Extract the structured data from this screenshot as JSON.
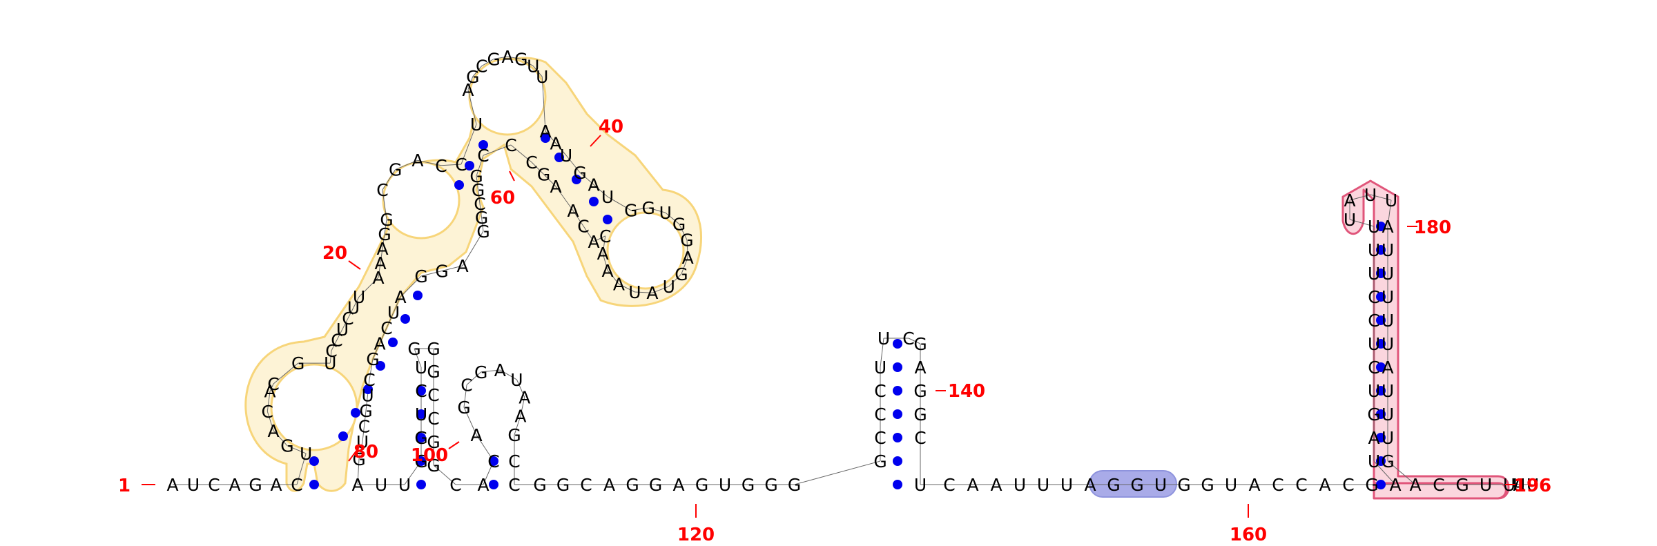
{
  "sequence": "AUCAGACUGUCCACGUAAAUGGCCCAGCCUAGCGAGUUAAAUGGGGAUUAAUCCAAGGCCCGAGGAUCCCGUCGAGCUGACGCCAUCUGCCGGCAGGGCCGAGCCAGAGGAGUGGGGCAAUUUAGGUGGUACCACGAUAGUCUCCUGUUUGGUAUUAUUUUAUACAAGGCAAUUUUUUA",
  "structure_regions": [
    {
      "label": "hairpin-region-1-86",
      "color": "#f7d57a",
      "fill": "#fdf3d6"
    },
    {
      "label": "highlight-UGGU",
      "color": "#8e93dd",
      "fill": "#a9abe8"
    },
    {
      "label": "terminator-hairpin",
      "color": "#e0557a",
      "fill": "#fbd6de"
    }
  ],
  "position_labels": [
    {
      "text": "1"
    },
    {
      "text": "20"
    },
    {
      "text": "40"
    },
    {
      "text": "60"
    },
    {
      "text": "80"
    },
    {
      "text": "100"
    },
    {
      "text": "120"
    },
    {
      "text": "140"
    },
    {
      "text": "160"
    },
    {
      "text": "180"
    },
    {
      "text": "196"
    }
  ],
  "nucleotides": [
    {
      "n": "A"
    },
    {
      "n": "U"
    },
    {
      "n": "C"
    },
    {
      "n": "A"
    },
    {
      "n": "G"
    },
    {
      "n": "A"
    },
    {
      "n": "C"
    },
    {
      "n": "U"
    },
    {
      "n": "G"
    },
    {
      "n": "A"
    },
    {
      "n": "C"
    },
    {
      "n": "A"
    },
    {
      "n": "C"
    },
    {
      "n": "G"
    },
    {
      "n": "U"
    },
    {
      "n": "C"
    },
    {
      "n": "C"
    },
    {
      "n": "U"
    },
    {
      "n": "C"
    },
    {
      "n": "U"
    },
    {
      "n": "U"
    },
    {
      "n": "A"
    },
    {
      "n": "A"
    },
    {
      "n": "A"
    },
    {
      "n": "G"
    },
    {
      "n": "G"
    },
    {
      "n": "C"
    },
    {
      "n": "G"
    },
    {
      "n": "A"
    },
    {
      "n": "C"
    },
    {
      "n": "C"
    },
    {
      "n": "U"
    },
    {
      "n": "A"
    },
    {
      "n": "G"
    },
    {
      "n": "C"
    },
    {
      "n": "G"
    },
    {
      "n": "A"
    },
    {
      "n": "G"
    },
    {
      "n": "U"
    },
    {
      "n": "U"
    },
    {
      "n": "A"
    },
    {
      "n": "A"
    },
    {
      "n": "U"
    },
    {
      "n": "G"
    },
    {
      "n": "A"
    },
    {
      "n": "U"
    },
    {
      "n": "G"
    },
    {
      "n": "G"
    },
    {
      "n": "U"
    },
    {
      "n": "G"
    },
    {
      "n": "G"
    },
    {
      "n": "A"
    },
    {
      "n": "G"
    },
    {
      "n": "U"
    },
    {
      "n": "A"
    },
    {
      "n": "U"
    },
    {
      "n": "A"
    },
    {
      "n": "A"
    },
    {
      "n": "A"
    },
    {
      "n": "C"
    },
    {
      "n": "A"
    },
    {
      "n": "C"
    },
    {
      "n": "A"
    },
    {
      "n": "A"
    },
    {
      "n": "G"
    },
    {
      "n": "C"
    },
    {
      "n": "C"
    },
    {
      "n": "C"
    },
    {
      "n": "G"
    },
    {
      "n": "G"
    },
    {
      "n": "C"
    },
    {
      "n": "G"
    },
    {
      "n": "G"
    },
    {
      "n": "A"
    },
    {
      "n": "G"
    },
    {
      "n": "G"
    },
    {
      "n": "A"
    },
    {
      "n": "U"
    },
    {
      "n": "C"
    },
    {
      "n": "A"
    },
    {
      "n": "G"
    },
    {
      "n": "C"
    },
    {
      "n": "U"
    },
    {
      "n": "G"
    },
    {
      "n": "C"
    },
    {
      "n": "U"
    },
    {
      "n": "G"
    },
    {
      "n": "A"
    },
    {
      "n": "U"
    },
    {
      "n": "U"
    },
    {
      "n": "G"
    },
    {
      "n": "G"
    },
    {
      "n": "U"
    },
    {
      "n": "C"
    },
    {
      "n": "U"
    },
    {
      "n": "G"
    },
    {
      "n": "G"
    },
    {
      "n": "G"
    },
    {
      "n": "C"
    },
    {
      "n": "C"
    },
    {
      "n": "G"
    },
    {
      "n": "G"
    },
    {
      "n": "C"
    },
    {
      "n": "A"
    },
    {
      "n": "C"
    },
    {
      "n": "A"
    },
    {
      "n": "G"
    },
    {
      "n": "C"
    },
    {
      "n": "G"
    },
    {
      "n": "A"
    },
    {
      "n": "U"
    },
    {
      "n": "A"
    },
    {
      "n": "A"
    },
    {
      "n": "G"
    },
    {
      "n": "C"
    },
    {
      "n": "C"
    },
    {
      "n": "G"
    },
    {
      "n": "G"
    },
    {
      "n": "C"
    },
    {
      "n": "A"
    },
    {
      "n": "G"
    },
    {
      "n": "G"
    },
    {
      "n": "A"
    },
    {
      "n": "G"
    },
    {
      "n": "U"
    },
    {
      "n": "G"
    },
    {
      "n": "G"
    },
    {
      "n": "G"
    },
    {
      "n": "G"
    },
    {
      "n": "C"
    },
    {
      "n": "C"
    },
    {
      "n": "C"
    },
    {
      "n": "U"
    },
    {
      "n": "U"
    },
    {
      "n": "C"
    },
    {
      "n": "G"
    },
    {
      "n": "A"
    },
    {
      "n": "G"
    },
    {
      "n": "G"
    },
    {
      "n": "C"
    },
    {
      "n": "U"
    },
    {
      "n": "C"
    },
    {
      "n": "A"
    },
    {
      "n": "A"
    },
    {
      "n": "U"
    },
    {
      "n": "U"
    },
    {
      "n": "U"
    },
    {
      "n": "A"
    },
    {
      "n": "G"
    },
    {
      "n": "G"
    },
    {
      "n": "U"
    },
    {
      "n": "G"
    },
    {
      "n": "G"
    },
    {
      "n": "U"
    },
    {
      "n": "A"
    },
    {
      "n": "C"
    },
    {
      "n": "C"
    },
    {
      "n": "A"
    },
    {
      "n": "C"
    },
    {
      "n": "G"
    },
    {
      "n": "A"
    },
    {
      "n": "U"
    },
    {
      "n": "A"
    },
    {
      "n": "G"
    },
    {
      "n": "U"
    },
    {
      "n": "C"
    },
    {
      "n": "U"
    },
    {
      "n": "C"
    },
    {
      "n": "C"
    },
    {
      "n": "U"
    },
    {
      "n": "U"
    },
    {
      "n": "U"
    },
    {
      "n": "U"
    },
    {
      "n": "A"
    },
    {
      "n": "U"
    },
    {
      "n": "U"
    },
    {
      "n": "A"
    },
    {
      "n": "U"
    },
    {
      "n": "U"
    },
    {
      "n": "U"
    },
    {
      "n": "U"
    },
    {
      "n": "U"
    },
    {
      "n": "A"
    },
    {
      "n": "U"
    },
    {
      "n": "U"
    },
    {
      "n": "U"
    },
    {
      "n": "G"
    },
    {
      "n": "A"
    },
    {
      "n": "C"
    },
    {
      "n": "G"
    },
    {
      "n": "U"
    },
    {
      "n": "U"
    },
    {
      "n": "U"
    },
    {
      "n": "U"
    },
    {
      "n": "U"
    },
    {
      "n": "A"
    }
  ]
}
